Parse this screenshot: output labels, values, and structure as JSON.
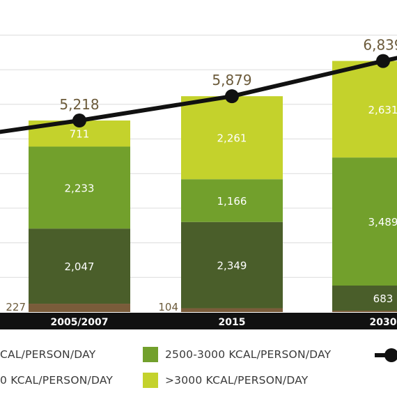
{
  "chart_data": {
    "type": "bar",
    "categories": [
      "2005/2007",
      "2015",
      "2030"
    ],
    "series": [
      {
        "name": "",
        "values": [
          227,
          104,
          38
        ],
        "color": "#7a5c3a"
      },
      {
        "name": "",
        "values": [
          2047,
          2349,
          683
        ],
        "color": "#4a5e2a"
      },
      {
        "name": "2500-3000 KCAL/PERSON/DAY",
        "values": [
          2233,
          1166,
          3489
        ],
        "color": "#72a02c"
      },
      {
        "name": ">3000 KCAL/PERSON/DAY",
        "values": [
          711,
          2261,
          2631
        ],
        "color": "#c4d22c"
      }
    ],
    "value_labels": [
      [
        "227",
        "2,047",
        "2,233",
        "711"
      ],
      [
        "104",
        "2,349",
        "1,166",
        "2,261"
      ],
      [
        "",
        "683",
        "3,489",
        "2,631"
      ]
    ],
    "line": {
      "values": [
        5218,
        5879,
        6839
      ],
      "labels": [
        "5,218",
        "5,879",
        "6,839"
      ],
      "color": "#111111"
    },
    "ylim": [
      0,
      7800
    ],
    "grid": true,
    "title": "",
    "xlabel": "",
    "ylabel": ""
  },
  "legend": {
    "items": [
      {
        "text": "CAL/PERSON/DAY",
        "color": "#4a5e2a"
      },
      {
        "text": "2500-3000 KCAL/PERSON/DAY",
        "color": "#72a02c"
      },
      {
        "text": "",
        "color": "#111111"
      },
      {
        "text": "0 KCAL/PERSON/DAY",
        "color": "#7a5c3a"
      },
      {
        "text": ">3000 KCAL/PERSON/DAY",
        "color": "#c4d22c"
      }
    ]
  },
  "colors": {
    "axis_bar": "#111111",
    "grid": "#dcdcdc",
    "label_text": "#6b5a3a",
    "inner_text": "#ffffff"
  }
}
